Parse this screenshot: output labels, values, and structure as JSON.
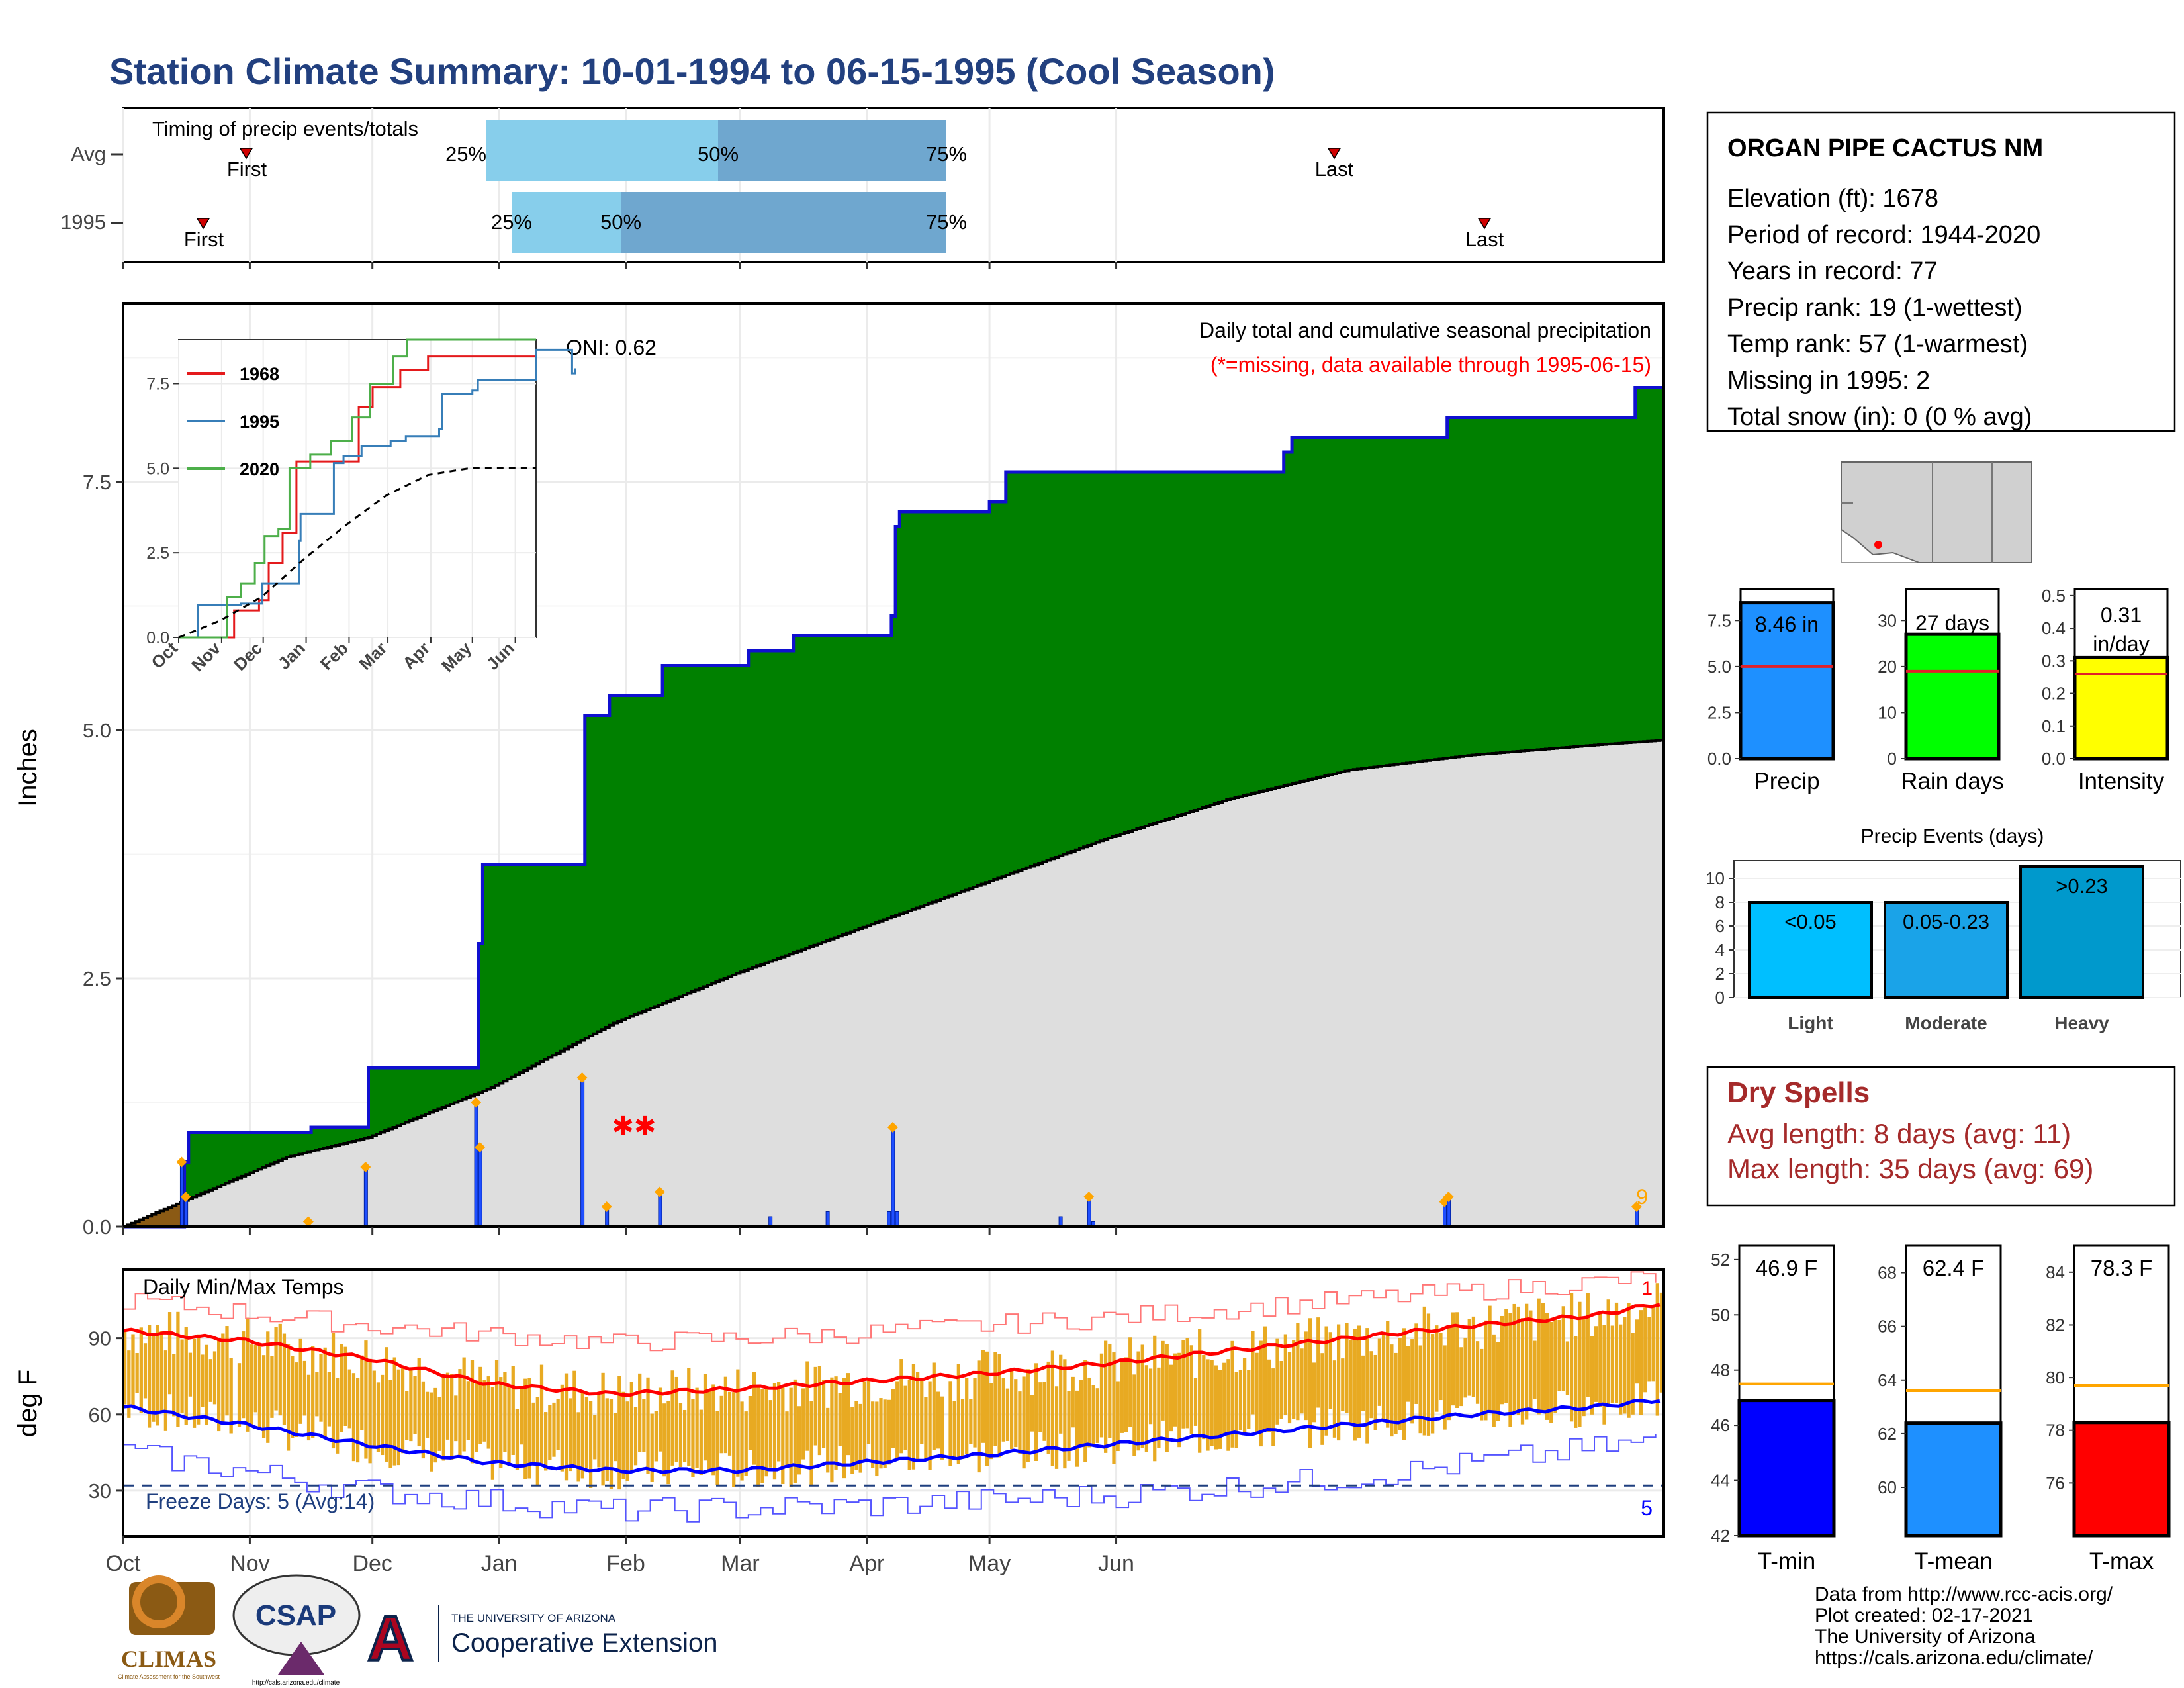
{
  "title": "Station Climate Summary: 10-01-1994 to 06-15-1995 (Cool Season)",
  "colors": {
    "title": "#22407f",
    "cum_fill": "#008000",
    "cum_line": "#1010d0",
    "avg_fill": "#dedede",
    "bar": "#1f4fff",
    "diamond": "#ffa500",
    "temp_bar": "#e8aa22",
    "tmax_line": "#ff0000",
    "tmin_line": "#0000ff",
    "dry_spell": "#a52a2a"
  },
  "timing": {
    "label": "Timing of precip events/totals",
    "rows": [
      {
        "name": "Avg",
        "first": "First",
        "last": "Last",
        "p25": "25%",
        "p50": "50%",
        "p75": "75%"
      },
      {
        "name": "1995",
        "first": "First",
        "last": "Last",
        "p25": "25%",
        "p50": "50%",
        "p75": "75%"
      }
    ]
  },
  "station": {
    "name": "ORGAN PIPE CACTUS NM",
    "lines": [
      "Elevation (ft): 1678",
      "Period of record: 1944-2020",
      "Years in record: 77",
      "Precip rank: 19 (1-wettest)",
      "Temp rank: 57 (1-warmest)",
      "Missing in 1995: 2",
      "Total snow (in): 0 (0 % avg)"
    ]
  },
  "precip_panel": {
    "ylabel": "Inches",
    "oni": "ONI: 0.62",
    "caption": "Daily total and cumulative seasonal precipitation",
    "missing_note": "(*=missing, data available through 1995-06-15)",
    "yticks": [
      "0.0",
      "2.5",
      "5.0",
      "7.5"
    ],
    "months": [
      "Oct",
      "Nov",
      "Dec",
      "Jan",
      "Feb",
      "Mar",
      "Apr",
      "May",
      "Jun"
    ],
    "count_label": "9"
  },
  "inset": {
    "yticks": [
      "0.0",
      "2.5",
      "5.0",
      "7.5"
    ],
    "months": [
      "Oct",
      "Nov",
      "Dec",
      "Jan",
      "Feb",
      "Mar",
      "Apr",
      "May",
      "Jun"
    ],
    "legend": [
      "1968",
      "1995",
      "2020"
    ]
  },
  "temp_panel": {
    "ylabel": "deg F",
    "label": "Daily Min/Max Temps",
    "freeze": "Freeze Days: 5 (Avg:14)",
    "yticks": [
      "30",
      "60",
      "90"
    ],
    "months": [
      "Oct",
      "Nov",
      "Dec",
      "Jan",
      "Feb",
      "Mar",
      "Apr",
      "May",
      "Jun"
    ],
    "top_count": "1",
    "bottom_count": "5"
  },
  "summary_bars": [
    {
      "label": "Precip",
      "value_text": "8.46 in",
      "color": "#1e90ff",
      "yticks": [
        "0.0",
        "2.5",
        "5.0",
        "7.5"
      ]
    },
    {
      "label": "Rain days",
      "value_text": "27 days",
      "color": "#00ff00",
      "yticks": [
        "0",
        "10",
        "20",
        "30"
      ]
    },
    {
      "label": "Intensity",
      "value_text": "0.31 in/day",
      "color": "#ffff00",
      "yticks": [
        "0.0",
        "0.1",
        "0.2",
        "0.3",
        "0.4",
        "0.5"
      ]
    }
  ],
  "events": {
    "title": "Precip Events (days)",
    "yticks": [
      "0",
      "2",
      "4",
      "6",
      "8",
      "10"
    ],
    "bars": [
      {
        "label": "Light",
        "text": "<0.05",
        "color": "#00bfff"
      },
      {
        "label": "Moderate",
        "text": "0.05-0.23",
        "color": "#1aa3e8"
      },
      {
        "label": "Heavy",
        "text": ">0.23",
        "color": "#0099cc"
      }
    ]
  },
  "dry_spells": {
    "title": "Dry Spells",
    "avg": "Avg length: 8 days (avg: 11)",
    "max": "Max length: 35 days (avg: 69)"
  },
  "temp_bars": [
    {
      "label": "T-min",
      "value_text": "46.9 F",
      "color": "#0000ff",
      "yticks": [
        "42",
        "44",
        "46",
        "48",
        "50",
        "52"
      ]
    },
    {
      "label": "T-mean",
      "value_text": "62.4 F",
      "color": "#1e90ff",
      "yticks": [
        "60",
        "62",
        "64",
        "66",
        "68"
      ]
    },
    {
      "label": "T-max",
      "value_text": "78.3 F",
      "color": "#ff0000",
      "yticks": [
        "76",
        "78",
        "80",
        "82",
        "84"
      ]
    }
  ],
  "footer": [
    "Data from http://www.rcc-acis.org/",
    "Plot created: 02-17-2021",
    "The University of Arizona",
    "https://cals.arizona.edu/climate/"
  ],
  "logos": {
    "climas": "CLIMAS",
    "climas_sub": "Climate Assessment for the Southwest",
    "csap": "CSAP",
    "csap_sub": "http://cals.arizona.edu/climate",
    "ua_letter": "A",
    "ua_small": "THE UNIVERSITY OF ARIZONA",
    "ua_big": "Cooperative Extension"
  },
  "chart_data": [
    {
      "type": "area",
      "title": "Daily total and cumulative seasonal precipitation",
      "ylabel": "Inches",
      "ylim": [
        0,
        9.3
      ],
      "x_range": [
        "1994-10-01",
        "1995-06-15"
      ],
      "cumulative_1995": [
        [
          0,
          0
        ],
        [
          14,
          0
        ],
        [
          15,
          0.65
        ],
        [
          16,
          0.95
        ],
        [
          45,
          0.95
        ],
        [
          46,
          1.0
        ],
        [
          59,
          1.0
        ],
        [
          60,
          1.6
        ],
        [
          86,
          1.6
        ],
        [
          87,
          2.85
        ],
        [
          88,
          3.65
        ],
        [
          112,
          3.65
        ],
        [
          113,
          5.15
        ],
        [
          119,
          5.35
        ],
        [
          131,
          5.35
        ],
        [
          132,
          5.65
        ],
        [
          152,
          5.65
        ],
        [
          153,
          5.8
        ],
        [
          163,
          5.8
        ],
        [
          164,
          5.95
        ],
        [
          187,
          5.95
        ],
        [
          188,
          6.15
        ],
        [
          189,
          7.05
        ],
        [
          190,
          7.2
        ],
        [
          211,
          7.2
        ],
        [
          212,
          7.3
        ],
        [
          215,
          7.3
        ],
        [
          216,
          7.6
        ],
        [
          283,
          7.6
        ],
        [
          284,
          7.8
        ],
        [
          286,
          7.95
        ],
        [
          323,
          7.95
        ],
        [
          324,
          8.15
        ],
        [
          369,
          8.15
        ],
        [
          370,
          8.45
        ],
        [
          377,
          8.45
        ]
      ],
      "cumulative_avg": [
        [
          0,
          0
        ],
        [
          20,
          0.35
        ],
        [
          40,
          0.7
        ],
        [
          60,
          0.9
        ],
        [
          90,
          1.4
        ],
        [
          120,
          2.05
        ],
        [
          150,
          2.55
        ],
        [
          180,
          3.0
        ],
        [
          210,
          3.45
        ],
        [
          240,
          3.9
        ],
        [
          270,
          4.3
        ],
        [
          300,
          4.6
        ],
        [
          330,
          4.75
        ],
        [
          360,
          4.85
        ],
        [
          377,
          4.9
        ]
      ],
      "daily": [
        [
          14,
          0.65
        ],
        [
          15,
          0.3
        ],
        [
          45,
          0.05
        ],
        [
          59,
          0.6
        ],
        [
          86,
          1.25
        ],
        [
          87,
          0.8
        ],
        [
          112,
          1.5
        ],
        [
          118,
          0.2
        ],
        [
          131,
          0.35
        ],
        [
          158,
          0.1
        ],
        [
          172,
          0.15
        ],
        [
          187,
          0.15
        ],
        [
          188,
          1.0
        ],
        [
          189,
          0.15
        ],
        [
          229,
          0.1
        ],
        [
          236,
          0.3
        ],
        [
          237,
          0.05
        ],
        [
          323,
          0.25
        ],
        [
          324,
          0.3
        ],
        [
          370,
          0.2
        ]
      ],
      "missing_day": [
        125,
        1.0
      ]
    },
    {
      "type": "line",
      "title": "Cumulative precipitation (inset)",
      "ylim": [
        0,
        8.8
      ],
      "series": [
        {
          "name": "1968",
          "points": [
            [
              0,
              0
            ],
            [
              35,
              0
            ],
            [
              40,
              0.8
            ],
            [
              58,
              1.1
            ],
            [
              65,
              2.2
            ],
            [
              75,
              3.1
            ],
            [
              85,
              5.2
            ],
            [
              118,
              5.2
            ],
            [
              130,
              6.8
            ],
            [
              140,
              7.4
            ],
            [
              160,
              7.9
            ],
            [
              180,
              8.3
            ],
            [
              258,
              8.3
            ]
          ]
        },
        {
          "name": "1995",
          "points": [
            [
              0,
              0
            ],
            [
              14,
              0.95
            ],
            [
              45,
              1.0
            ],
            [
              60,
              1.6
            ],
            [
              87,
              2.85
            ],
            [
              88,
              3.65
            ],
            [
              112,
              5.15
            ],
            [
              119,
              5.35
            ],
            [
              132,
              5.65
            ],
            [
              153,
              5.8
            ],
            [
              164,
              5.95
            ],
            [
              188,
              6.15
            ],
            [
              190,
              7.2
            ],
            [
              212,
              7.3
            ],
            [
              216,
              7.6
            ],
            [
              284,
              7.8
            ],
            [
              286,
              7.95
            ],
            [
              258,
              8.5
            ]
          ]
        },
        {
          "name": "2020",
          "points": [
            [
              0,
              0
            ],
            [
              30,
              0
            ],
            [
              35,
              1.2
            ],
            [
              45,
              1.6
            ],
            [
              55,
              2.2
            ],
            [
              62,
              3.0
            ],
            [
              72,
              3.2
            ],
            [
              80,
              5.0
            ],
            [
              95,
              5.4
            ],
            [
              110,
              5.8
            ],
            [
              125,
              6.5
            ],
            [
              138,
              7.5
            ],
            [
              155,
              8.3
            ],
            [
              165,
              8.8
            ],
            [
              258,
              8.8
            ]
          ]
        },
        {
          "name": "avg",
          "points": [
            [
              0,
              0
            ],
            [
              30,
              0.5
            ],
            [
              60,
              1.2
            ],
            [
              90,
              2.3
            ],
            [
              120,
              3.3
            ],
            [
              150,
              4.2
            ],
            [
              180,
              4.8
            ],
            [
              210,
              5.0
            ],
            [
              258,
              5.0
            ]
          ]
        }
      ]
    },
    {
      "type": "bar",
      "title": "Daily Min/Max Temps",
      "ylabel": "deg F",
      "ylim": [
        12,
        117
      ],
      "x_range": [
        "1994-10-01",
        "1995-06-15"
      ],
      "tmax_avg": [
        [
          0,
          93
        ],
        [
          30,
          89
        ],
        [
          60,
          82
        ],
        [
          90,
          72
        ],
        [
          120,
          68
        ],
        [
          150,
          70
        ],
        [
          180,
          73
        ],
        [
          210,
          76
        ],
        [
          240,
          80
        ],
        [
          270,
          85
        ],
        [
          300,
          90
        ],
        [
          330,
          95
        ],
        [
          360,
          99
        ],
        [
          377,
          104
        ]
      ],
      "tmin_avg": [
        [
          0,
          63
        ],
        [
          30,
          56
        ],
        [
          60,
          48
        ],
        [
          90,
          41
        ],
        [
          120,
          38
        ],
        [
          150,
          38
        ],
        [
          180,
          41
        ],
        [
          210,
          44
        ],
        [
          240,
          48
        ],
        [
          270,
          52
        ],
        [
          300,
          56
        ],
        [
          330,
          60
        ],
        [
          360,
          63
        ],
        [
          377,
          66
        ]
      ],
      "record_high": [
        [
          0,
          105
        ],
        [
          60,
          95
        ],
        [
          120,
          88
        ],
        [
          180,
          92
        ],
        [
          240,
          98
        ],
        [
          300,
          105
        ],
        [
          377,
          114
        ]
      ],
      "record_low": [
        [
          0,
          45
        ],
        [
          60,
          30
        ],
        [
          120,
          22
        ],
        [
          180,
          24
        ],
        [
          240,
          28
        ],
        [
          300,
          35
        ],
        [
          377,
          50
        ]
      ],
      "freeze_line": 32
    },
    {
      "type": "bar",
      "title": "Precip summary",
      "categories": [
        "Precip",
        "Rain days",
        "Intensity"
      ],
      "values": [
        8.46,
        27,
        0.31
      ],
      "averages": [
        5.0,
        19,
        0.26
      ]
    },
    {
      "type": "bar",
      "title": "Precip Events (days)",
      "categories": [
        "Light",
        "Moderate",
        "Heavy"
      ],
      "values": [
        8,
        8,
        11
      ],
      "ylim": [
        0,
        11.5
      ]
    },
    {
      "type": "bar",
      "title": "Seasonal temperatures",
      "categories": [
        "T-min",
        "T-mean",
        "T-max"
      ],
      "values": [
        46.9,
        62.4,
        78.3
      ],
      "averages": [
        47.5,
        63.6,
        79.7
      ]
    }
  ]
}
